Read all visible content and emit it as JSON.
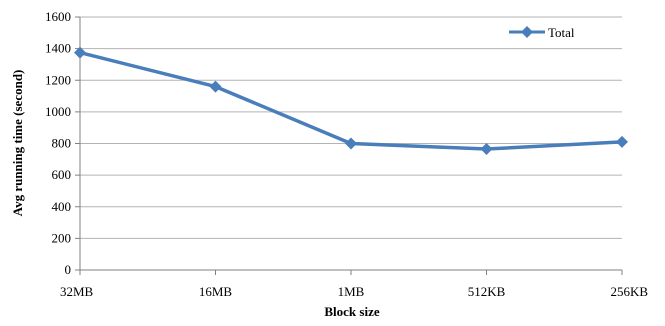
{
  "chart_data": {
    "type": "line",
    "title": "",
    "xlabel": "Block size",
    "ylabel": "Avg running time (second)",
    "categories": [
      "32MB",
      "16MB",
      "1MB",
      "512KB",
      "256KB"
    ],
    "series": [
      {
        "name": "Total",
        "values": [
          1375,
          1160,
          800,
          765,
          810
        ],
        "color": "#4a7ebb"
      }
    ],
    "ylim": [
      0,
      1600
    ],
    "yticks": [
      0,
      200,
      400,
      600,
      800,
      1000,
      1200,
      1400,
      1600
    ],
    "grid": true,
    "legend": "top-right",
    "marker": "diamond"
  }
}
